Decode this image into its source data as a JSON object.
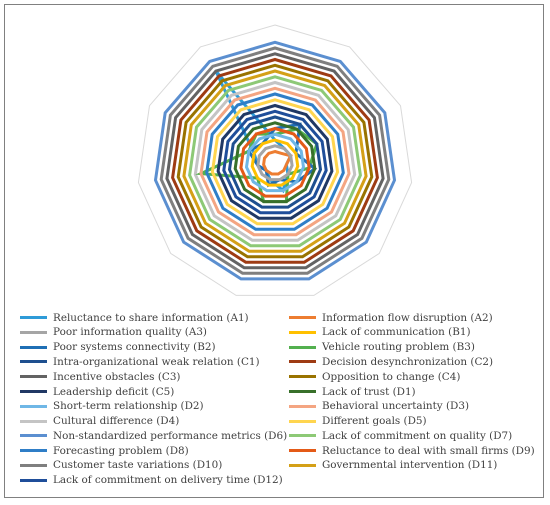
{
  "chart_data": {
    "type": "radar",
    "title": "",
    "n_axes": 11,
    "rmax": 24,
    "grid": true,
    "legend_position": "bottom",
    "series": [
      {
        "name": "Reluctance to share information (A1)",
        "color": "#2e9bd8",
        "values": [
          4,
          3,
          3,
          2,
          3,
          5,
          3,
          2,
          3,
          4,
          19
        ]
      },
      {
        "name": "Information flow disruption (A2)",
        "color": "#ed7d31",
        "values": [
          2,
          2,
          3,
          2,
          2,
          2,
          2,
          2,
          2,
          2,
          2
        ]
      },
      {
        "name": "Poor information quality (A3)",
        "color": "#a5a5a5",
        "values": [
          3,
          3,
          3,
          3,
          3,
          3,
          3,
          3,
          3,
          3,
          3
        ]
      },
      {
        "name": "Lack of communication (B1)",
        "color": "#ffc000",
        "values": [
          4,
          4,
          4,
          4,
          4,
          4,
          4,
          4,
          4,
          4,
          4
        ]
      },
      {
        "name": "Poor systems connectivity (B2)",
        "color": "#1f6fb5",
        "values": [
          6,
          8,
          4,
          7,
          5,
          3,
          4,
          2,
          3,
          5,
          4
        ]
      },
      {
        "name": "Vehicle routing problem (B3)",
        "color": "#53b04f",
        "values": [
          5,
          7,
          8,
          6,
          3,
          7,
          7,
          4,
          13,
          5,
          6
        ]
      },
      {
        "name": "Intra-organizational weak relation (C1)",
        "color": "#1e4f8f",
        "values": [
          8,
          8,
          8,
          8,
          8,
          8,
          8,
          8,
          8,
          8,
          8
        ]
      },
      {
        "name": "Decision desynchronization (C2)",
        "color": "#9e3b13",
        "values": [
          18,
          18,
          18,
          18,
          18,
          18,
          18,
          18,
          18,
          18,
          18
        ]
      },
      {
        "name": "Incentive obstacles (C3)",
        "color": "#636363",
        "values": [
          19,
          19,
          19,
          19,
          19,
          19,
          19,
          19,
          19,
          19,
          19
        ]
      },
      {
        "name": "Opposition to change (C4)",
        "color": "#997300",
        "values": [
          17,
          17,
          17,
          17,
          17,
          17,
          17,
          17,
          17,
          17,
          17
        ]
      },
      {
        "name": "Leadership deficit (C5)",
        "color": "#203864",
        "values": [
          10,
          10,
          10,
          10,
          10,
          10,
          10,
          10,
          10,
          10,
          10
        ]
      },
      {
        "name": "Lack of trust (D1)",
        "color": "#38702a",
        "values": [
          7,
          7,
          7,
          7,
          7,
          7,
          7,
          7,
          7,
          7,
          7
        ]
      },
      {
        "name": "Short-term relationship (D2)",
        "color": "#6fb7e6",
        "values": [
          5,
          5,
          5,
          5,
          5,
          5,
          5,
          5,
          5,
          5,
          5
        ]
      },
      {
        "name": "Behavioral uncertainty (D3)",
        "color": "#f4a582",
        "values": [
          13,
          13,
          13,
          13,
          13,
          13,
          13,
          13,
          13,
          13,
          13
        ]
      },
      {
        "name": "Cultural difference (D4)",
        "color": "#c4c4c4",
        "values": [
          14,
          14,
          14,
          14,
          14,
          14,
          14,
          14,
          14,
          14,
          14
        ]
      },
      {
        "name": "Different goals (D5)",
        "color": "#ffd54f",
        "values": [
          11,
          11,
          11,
          11,
          11,
          11,
          11,
          11,
          11,
          11,
          11
        ]
      },
      {
        "name": "Non-standardized performance metrics (D6)",
        "color": "#5b8fd0",
        "values": [
          21,
          21,
          21,
          21,
          21,
          21,
          21,
          21,
          21,
          21,
          21
        ]
      },
      {
        "name": "Lack of commitment on quality (D7)",
        "color": "#8dc976",
        "values": [
          15,
          15,
          15,
          15,
          15,
          15,
          15,
          15,
          15,
          15,
          15
        ]
      },
      {
        "name": "Forecasting problem (D8)",
        "color": "#2f7ec7",
        "values": [
          12,
          12,
          12,
          12,
          12,
          12,
          12,
          12,
          12,
          12,
          12
        ]
      },
      {
        "name": "Reluctance to deal with small firms (D9)",
        "color": "#e45a17",
        "values": [
          6,
          6,
          6,
          6,
          6,
          6,
          6,
          6,
          6,
          6,
          6
        ]
      },
      {
        "name": "Customer taste variations (D10)",
        "color": "#7f7f7f",
        "values": [
          20,
          20,
          20,
          20,
          20,
          20,
          20,
          20,
          20,
          20,
          20
        ]
      },
      {
        "name": "Governmental intervention (D11)",
        "color": "#d4a017",
        "values": [
          16,
          16,
          16,
          16,
          16,
          16,
          16,
          16,
          16,
          16,
          16
        ]
      },
      {
        "name": "Lack of commitment on delivery time (D12)",
        "color": "#1f4e9a",
        "values": [
          9,
          9,
          9,
          9,
          9,
          9,
          9,
          9,
          9,
          9,
          9
        ]
      }
    ]
  }
}
